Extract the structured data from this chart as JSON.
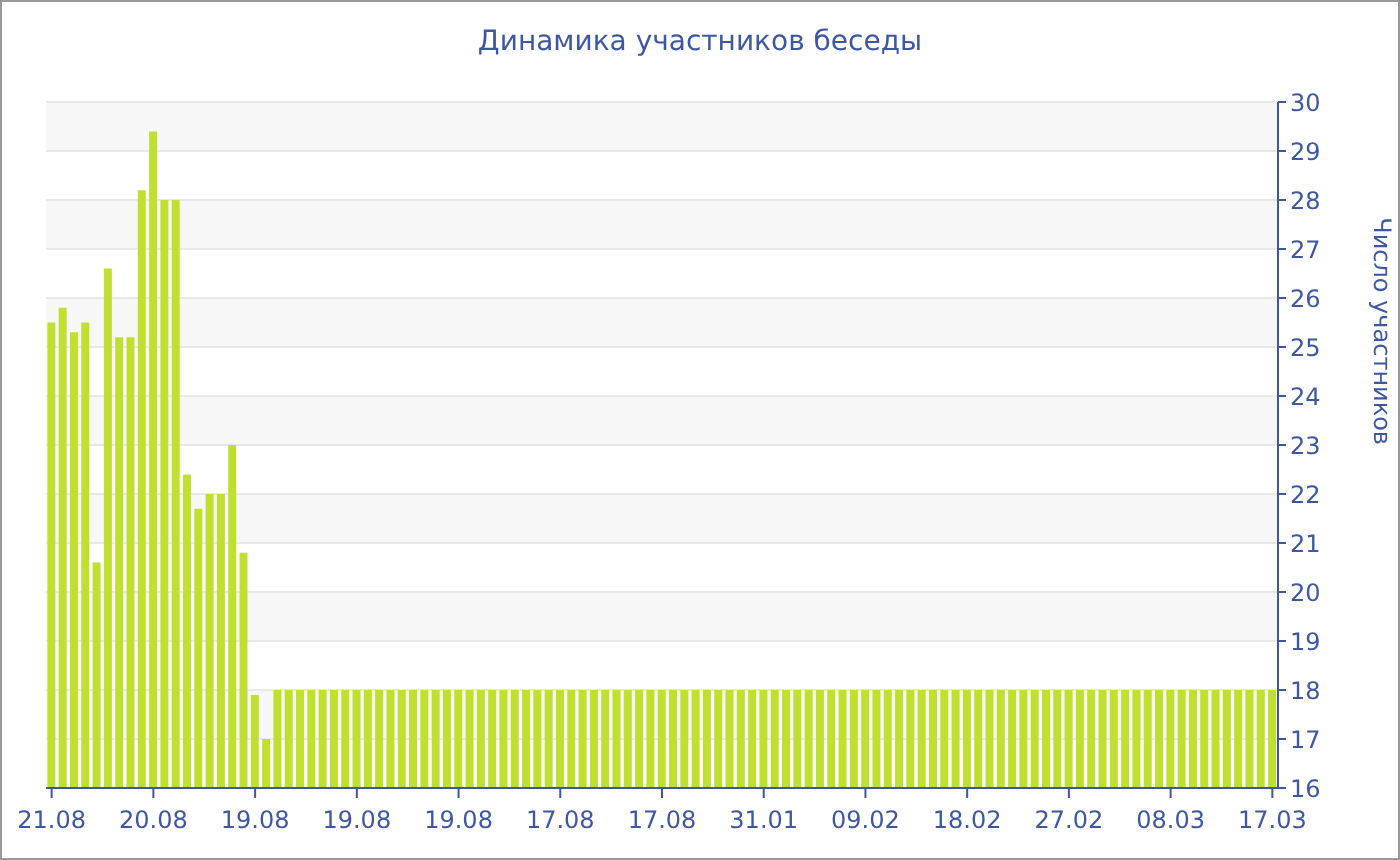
{
  "chart_data": {
    "type": "bar",
    "title": "Динамика участников беседы",
    "ylabel": "Число участников",
    "categories": [
      "21.08",
      null,
      null,
      null,
      null,
      null,
      null,
      null,
      null,
      "20.08",
      null,
      null,
      null,
      null,
      null,
      null,
      null,
      null,
      "19.08",
      null,
      null,
      null,
      null,
      null,
      null,
      null,
      null,
      "19.08",
      null,
      null,
      null,
      null,
      null,
      null,
      null,
      null,
      "19.08",
      null,
      null,
      null,
      null,
      null,
      null,
      null,
      null,
      "17.08",
      null,
      null,
      null,
      null,
      null,
      null,
      null,
      null,
      "17.08",
      null,
      null,
      null,
      null,
      null,
      null,
      null,
      null,
      "31.01",
      null,
      null,
      null,
      null,
      null,
      null,
      null,
      null,
      "09.02",
      null,
      null,
      null,
      null,
      null,
      null,
      null,
      null,
      "18.02",
      null,
      null,
      null,
      null,
      null,
      null,
      null,
      null,
      "27.02",
      null,
      null,
      null,
      null,
      null,
      null,
      null,
      null,
      "08.03",
      null,
      null,
      null,
      null,
      null,
      null,
      null,
      null,
      "17.03"
    ],
    "values": [
      25.5,
      25.8,
      25.3,
      25.5,
      20.6,
      26.6,
      25.2,
      25.2,
      28.2,
      29.4,
      28,
      28,
      22.4,
      21.7,
      22,
      22,
      23,
      20.8,
      17.9,
      17,
      18,
      18,
      18,
      18,
      18,
      18,
      18,
      18,
      18,
      18,
      18,
      18,
      18,
      18,
      18,
      18,
      18,
      18,
      18,
      18,
      18,
      18,
      18,
      18,
      18,
      18,
      18,
      18,
      18,
      18,
      18,
      18,
      18,
      18,
      18,
      18,
      18,
      18,
      18,
      18,
      18,
      18,
      18,
      18,
      18,
      18,
      18,
      18,
      18,
      18,
      18,
      18,
      18,
      18,
      18,
      18,
      18,
      18,
      18,
      18,
      18,
      18,
      18,
      18,
      18,
      18,
      18,
      18,
      18,
      18,
      18,
      18,
      18,
      18,
      18,
      18,
      18,
      18,
      18,
      18,
      18,
      18,
      18,
      18,
      18,
      18,
      18,
      18,
      18
    ],
    "color": "#c0e030",
    "ylim": [
      16,
      30
    ],
    "yticks": [
      16,
      17,
      18,
      19,
      20,
      21,
      22,
      23,
      24,
      25,
      26,
      27,
      28,
      29,
      30
    ],
    "grid": "y"
  }
}
